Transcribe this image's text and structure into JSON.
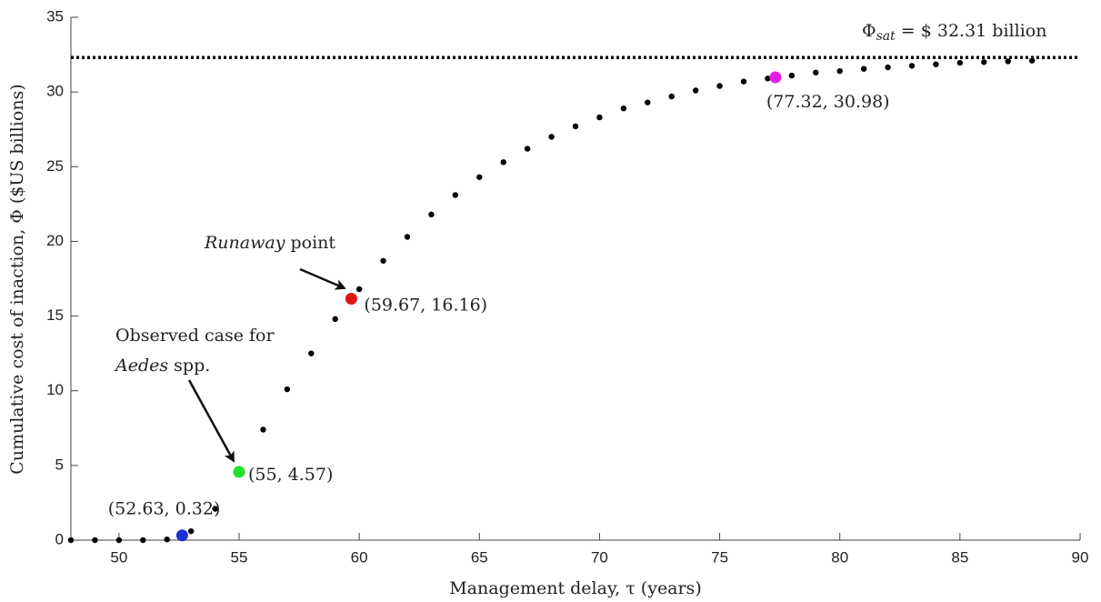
{
  "chart_data": {
    "type": "scatter",
    "xlabel": "Management delay, τ (years)",
    "ylabel": "Cumulative cost of inaction, Φ ($US billions)",
    "xlim": [
      48,
      90
    ],
    "xticks": [
      50,
      55,
      60,
      65,
      70,
      75,
      80,
      85,
      90
    ],
    "ylim": [
      0,
      35
    ],
    "yticks": [
      0,
      5,
      10,
      15,
      20,
      25,
      30,
      35
    ],
    "grid": false,
    "color": "#000000",
    "x": [
      48,
      49,
      50,
      51,
      52,
      53,
      54,
      56,
      57,
      58,
      59,
      60,
      61,
      62,
      63,
      64,
      65,
      66,
      67,
      68,
      69,
      70,
      71,
      72,
      73,
      74,
      75,
      76,
      77,
      78,
      79,
      80,
      81,
      82,
      83,
      84,
      85,
      86,
      87,
      88
    ],
    "values": [
      0,
      0,
      0,
      0,
      0.05,
      0.6,
      2.1,
      7.4,
      10.1,
      12.5,
      14.8,
      16.8,
      18.7,
      20.3,
      21.8,
      23.1,
      24.3,
      25.3,
      26.2,
      27.0,
      27.7,
      28.3,
      28.9,
      29.3,
      29.7,
      30.1,
      30.4,
      30.7,
      30.9,
      31.1,
      31.3,
      31.4,
      31.55,
      31.65,
      31.75,
      31.85,
      31.95,
      32.0,
      32.05,
      32.1
    ],
    "highlights": [
      {
        "x": 52.63,
        "y": 0.32,
        "color": "#1f2fd6",
        "label": "(52.63, 0.32)"
      },
      {
        "x": 55,
        "y": 4.57,
        "color": "#22e02a",
        "label": "(55, 4.57)"
      },
      {
        "x": 59.67,
        "y": 16.16,
        "color": "#e01515",
        "label": "(59.67, 16.16)"
      },
      {
        "x": 77.32,
        "y": 30.98,
        "color": "#e51ee5",
        "label": "(77.32, 30.98)"
      }
    ],
    "saturation": {
      "value": 32.31,
      "symbol": "Φ",
      "subscript": "sat",
      "text": " = $ 32.31 billion"
    },
    "annotations": {
      "runaway": {
        "italic": "Runaway",
        "text": " point"
      },
      "observed": {
        "line1": "Observed case for",
        "italic": "Aedes",
        "text": " spp."
      }
    }
  }
}
